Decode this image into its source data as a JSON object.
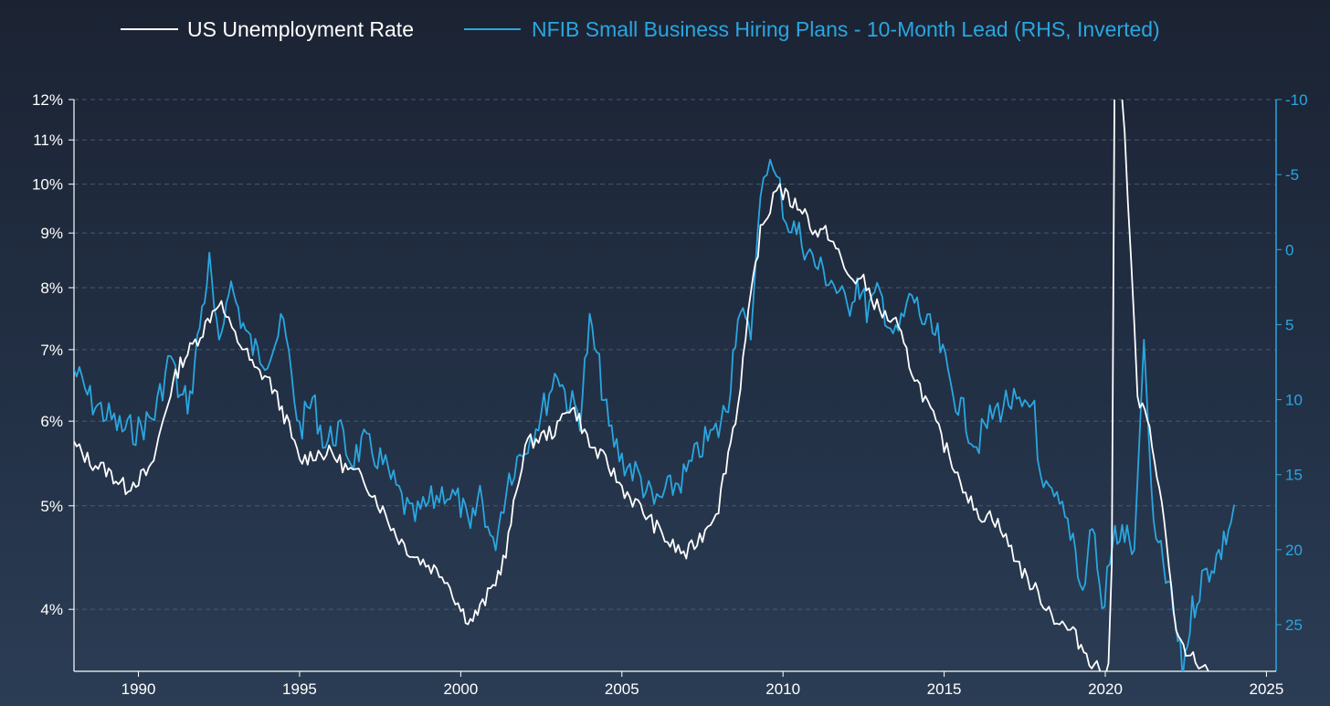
{
  "colors": {
    "unemployment": "#ffffff",
    "nfib": "#2aa6e0",
    "grid": "#5c6b80"
  },
  "chart_data": {
    "type": "line",
    "legend": [
      {
        "name": "US Unemployment Rate",
        "color": "#ffffff"
      },
      {
        "name": "NFIB Small Business Hiring Plans - 10-Month Lead (RHS, Inverted)",
        "color": "#2aa6e0"
      }
    ],
    "legend_position": "top",
    "grid": "horizontal dashed",
    "x_axis": {
      "range": [
        1988.0,
        2025.3
      ],
      "ticks": [
        "1990",
        "1995",
        "2000",
        "2005",
        "2010",
        "2015",
        "2020",
        "2025"
      ]
    },
    "left_axis": {
      "scale": "log",
      "range": [
        3.5,
        12
      ],
      "ticks": [
        {
          "v": 12,
          "label": "12%"
        },
        {
          "v": 11,
          "label": "11%"
        },
        {
          "v": 10,
          "label": "10%"
        },
        {
          "v": 9,
          "label": "9%"
        },
        {
          "v": 8,
          "label": "8%"
        },
        {
          "v": 7,
          "label": "7%"
        },
        {
          "v": 6,
          "label": "6%"
        },
        {
          "v": 5,
          "label": "5%"
        },
        {
          "v": 4,
          "label": "4%"
        }
      ]
    },
    "right_axis": {
      "inverted": true,
      "ticks": [
        {
          "v": -10,
          "label": "-10"
        },
        {
          "v": -5,
          "label": "-5"
        },
        {
          "v": 0,
          "label": "0"
        },
        {
          "v": 5,
          "label": "5"
        },
        {
          "v": 10,
          "label": "10"
        },
        {
          "v": 15,
          "label": "15"
        },
        {
          "v": 20,
          "label": "20"
        },
        {
          "v": 25,
          "label": "25"
        }
      ]
    },
    "series": [
      {
        "name": "US Unemployment Rate",
        "axis": "left",
        "x": [
          1988.0,
          1988.5,
          1989.0,
          1989.3,
          1989.6,
          1990.0,
          1990.4,
          1990.7,
          1991.0,
          1991.3,
          1991.6,
          1992.0,
          1992.3,
          1992.5,
          1992.8,
          1993.0,
          1993.3,
          1993.6,
          1994.0,
          1994.3,
          1994.6,
          1995.0,
          1995.5,
          1996.0,
          1996.5,
          1997.0,
          1997.5,
          1998.0,
          1998.5,
          1999.0,
          1999.5,
          2000.0,
          2000.3,
          2000.6,
          2001.0,
          2001.4,
          2001.8,
          2002.0,
          2002.5,
          2003.0,
          2003.3,
          2003.6,
          2004.0,
          2004.5,
          2005.0,
          2005.5,
          2006.0,
          2006.5,
          2007.0,
          2007.5,
          2008.0,
          2008.3,
          2008.6,
          2009.0,
          2009.3,
          2009.6,
          2009.8,
          2010.0,
          2010.3,
          2010.6,
          2011.0,
          2011.4,
          2011.8,
          2012.0,
          2012.5,
          2013.0,
          2013.5,
          2014.0,
          2014.5,
          2015.0,
          2015.5,
          2016.0,
          2016.5,
          2017.0,
          2017.5,
          2018.0,
          2018.5,
          2019.0,
          2019.5,
          2019.9,
          2020.1,
          2020.2,
          2020.3,
          2020.45,
          2020.6,
          2020.8,
          2021.0,
          2021.3,
          2021.6,
          2021.9,
          2022.2,
          2022.5,
          2022.8,
          2023.0,
          2023.2
        ],
        "y": [
          5.7,
          5.5,
          5.4,
          5.3,
          5.2,
          5.3,
          5.4,
          5.9,
          6.4,
          6.8,
          7.0,
          7.3,
          7.6,
          7.8,
          7.4,
          7.2,
          7.0,
          6.7,
          6.6,
          6.3,
          6.0,
          5.5,
          5.6,
          5.6,
          5.4,
          5.3,
          5.0,
          4.7,
          4.5,
          4.4,
          4.3,
          4.0,
          3.9,
          4.0,
          4.2,
          4.5,
          5.3,
          5.7,
          5.8,
          5.9,
          6.2,
          6.1,
          5.7,
          5.5,
          5.2,
          5.0,
          4.8,
          4.6,
          4.5,
          4.7,
          5.0,
          5.6,
          6.2,
          7.8,
          9.0,
          9.5,
          10.0,
          9.8,
          9.6,
          9.5,
          9.0,
          9.0,
          8.5,
          8.2,
          8.1,
          7.6,
          7.4,
          6.7,
          6.2,
          5.7,
          5.3,
          4.9,
          4.9,
          4.6,
          4.3,
          4.1,
          3.9,
          3.8,
          3.6,
          3.5,
          3.5,
          4.4,
          14.7,
          13.3,
          11.1,
          8.4,
          6.3,
          6.0,
          5.4,
          4.6,
          3.8,
          3.6,
          3.6,
          3.5,
          3.5
        ]
      },
      {
        "name": "NFIB Small Business Hiring Plans - 10-Month Lead (RHS, Inverted)",
        "axis": "right",
        "x": [
          1988.0,
          1988.5,
          1989.0,
          1989.5,
          1990.0,
          1990.5,
          1991.0,
          1991.3,
          1991.6,
          1991.9,
          1992.2,
          1992.5,
          1992.8,
          1993.1,
          1993.4,
          1993.7,
          1994.0,
          1994.5,
          1995.0,
          1995.4,
          1995.8,
          1996.2,
          1996.6,
          1997.0,
          1997.5,
          1998.0,
          1998.5,
          1999.0,
          1999.5,
          2000.0,
          2000.3,
          2000.6,
          2001.0,
          2001.5,
          2002.0,
          2002.5,
          2003.0,
          2003.3,
          2003.7,
          2004.0,
          2004.3,
          2004.6,
          2005.0,
          2005.5,
          2006.0,
          2006.5,
          2007.0,
          2007.5,
          2008.0,
          2008.3,
          2008.6,
          2009.0,
          2009.3,
          2009.5,
          2009.7,
          2009.9,
          2010.1,
          2010.5,
          2011.0,
          2011.5,
          2012.0,
          2012.3,
          2012.6,
          2013.0,
          2013.5,
          2014.0,
          2014.4,
          2014.8,
          2015.2,
          2015.6,
          2016.0,
          2016.5,
          2017.0,
          2017.5,
          2017.8,
          2018.0,
          2018.5,
          2019.0,
          2019.3,
          2019.6,
          2019.9,
          2020.3,
          2020.6,
          2020.9,
          2021.2,
          2021.5,
          2021.8,
          2022.1,
          2022.4,
          2022.7,
          2023.0,
          2023.3,
          2023.6,
          2023.9,
          2024.0
        ],
        "y": [
          8,
          10,
          11,
          12,
          12,
          11,
          7,
          10,
          10,
          5,
          1,
          7,
          2,
          4,
          6,
          7,
          7,
          5,
          12,
          10,
          13,
          12,
          14,
          13,
          14,
          16,
          18,
          17,
          16,
          17,
          19,
          16,
          20,
          15,
          13,
          11,
          8,
          10,
          11,
          5,
          8,
          12,
          14,
          15,
          17,
          16,
          15,
          13,
          12,
          10,
          4,
          6,
          -4,
          -6,
          -5,
          -4,
          -2,
          -1,
          1,
          2,
          4,
          2,
          4,
          3,
          6,
          3,
          5,
          6,
          9,
          11,
          13,
          11,
          10,
          11,
          10,
          16,
          17,
          19,
          23,
          18,
          24,
          19,
          19,
          20,
          6,
          19,
          21,
          24,
          28,
          24,
          22,
          21,
          20,
          18,
          17
        ]
      }
    ]
  }
}
